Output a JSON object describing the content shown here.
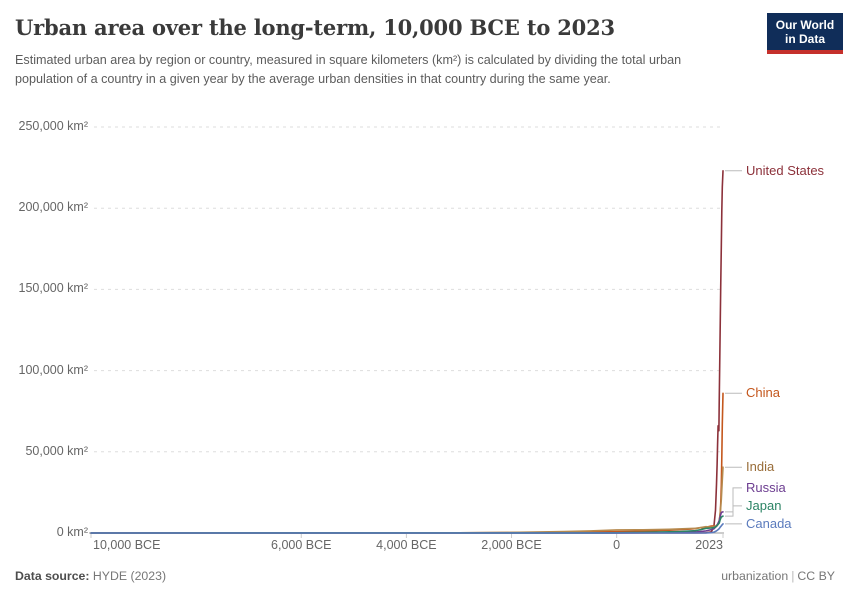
{
  "header": {
    "title": "Urban area over the long-term, 10,000 BCE to 2023",
    "subtitle": "Estimated urban area by region or country, measured in square kilometers (km²) is calculated by dividing the total urban population of a country in a given year by the average urban densities in that country during the same year."
  },
  "logo": {
    "line1": "Our World",
    "line2": "in Data",
    "bg_color": "#102d59",
    "bar_color": "#c5302b",
    "text_color": "#ffffff"
  },
  "chart_data": {
    "type": "line",
    "title": "Urban area over the long-term, 10,000 BCE to 2023",
    "xlabel": "",
    "ylabel": "",
    "x_range": [
      -10000,
      2023
    ],
    "ylim": [
      0,
      250000
    ],
    "grid": "horizontal-dashed",
    "legend_position": "right-edge-labels",
    "palette": {
      "grid_color": "#dddddd",
      "axis_color": "#999999",
      "tick_color": "#cccccc",
      "connector_color": "#bbbbbb",
      "tick_label_color": "#666666"
    },
    "yticks": [
      {
        "value": 0,
        "label": "0 km²"
      },
      {
        "value": 50000,
        "label": "50,000 km²"
      },
      {
        "value": 100000,
        "label": "100,000 km²"
      },
      {
        "value": 150000,
        "label": "150,000 km²"
      },
      {
        "value": 200000,
        "label": "200,000 km²"
      },
      {
        "value": 250000,
        "label": "250,000 km²"
      }
    ],
    "xticks": [
      {
        "value": -10000,
        "label": "10,000 BCE",
        "align": "left"
      },
      {
        "value": -6000,
        "label": "6,000 BCE",
        "align": "center"
      },
      {
        "value": -4000,
        "label": "4,000 BCE",
        "align": "center"
      },
      {
        "value": -2000,
        "label": "2,000 BCE",
        "align": "center"
      },
      {
        "value": 0,
        "label": "0",
        "align": "center"
      },
      {
        "value": 2023,
        "label": "2023",
        "align": "right"
      }
    ],
    "series": [
      {
        "name": "United States",
        "color": "#8c313a",
        "label_color": "#8c313a",
        "points": [
          [
            -10000,
            0
          ],
          [
            -5000,
            0
          ],
          [
            0,
            30
          ],
          [
            1000,
            60
          ],
          [
            1500,
            80
          ],
          [
            1700,
            150
          ],
          [
            1800,
            700
          ],
          [
            1850,
            4000
          ],
          [
            1880,
            14000
          ],
          [
            1900,
            30000
          ],
          [
            1910,
            42000
          ],
          [
            1920,
            55000
          ],
          [
            1930,
            66000
          ],
          [
            1945,
            63000
          ],
          [
            1950,
            80000
          ],
          [
            1960,
            103000
          ],
          [
            1970,
            127000
          ],
          [
            1980,
            151000
          ],
          [
            1990,
            176000
          ],
          [
            2000,
            198000
          ],
          [
            2010,
            213000
          ],
          [
            2023,
            223000
          ]
        ]
      },
      {
        "name": "China",
        "color": "#c4571d",
        "label_color": "#c4571d",
        "points": [
          [
            -10000,
            0
          ],
          [
            -5000,
            40
          ],
          [
            -3000,
            120
          ],
          [
            -2000,
            250
          ],
          [
            -1000,
            450
          ],
          [
            0,
            900
          ],
          [
            500,
            1100
          ],
          [
            1000,
            1700
          ],
          [
            1200,
            2100
          ],
          [
            1400,
            2400
          ],
          [
            1500,
            2700
          ],
          [
            1600,
            3300
          ],
          [
            1650,
            2900
          ],
          [
            1700,
            3400
          ],
          [
            1750,
            3900
          ],
          [
            1800,
            4300
          ],
          [
            1850,
            4400
          ],
          [
            1870,
            4000
          ],
          [
            1900,
            4700
          ],
          [
            1930,
            5600
          ],
          [
            1950,
            7200
          ],
          [
            1960,
            9500
          ],
          [
            1970,
            12500
          ],
          [
            1980,
            17500
          ],
          [
            1990,
            29000
          ],
          [
            2000,
            46000
          ],
          [
            2010,
            67000
          ],
          [
            2023,
            86000
          ]
        ]
      },
      {
        "name": "India",
        "color": "#b68a4e",
        "label_color": "#996d39",
        "points": [
          [
            -10000,
            0
          ],
          [
            -3000,
            150
          ],
          [
            -2000,
            350
          ],
          [
            -1000,
            900
          ],
          [
            -500,
            1300
          ],
          [
            0,
            1900
          ],
          [
            500,
            2000
          ],
          [
            1000,
            2300
          ],
          [
            1500,
            2900
          ],
          [
            1600,
            3300
          ],
          [
            1700,
            3900
          ],
          [
            1800,
            3600
          ],
          [
            1850,
            3900
          ],
          [
            1900,
            4300
          ],
          [
            1930,
            5300
          ],
          [
            1950,
            7600
          ],
          [
            1970,
            12000
          ],
          [
            1980,
            15500
          ],
          [
            1990,
            20500
          ],
          [
            2000,
            26500
          ],
          [
            2010,
            32500
          ],
          [
            2023,
            40500
          ]
        ]
      },
      {
        "name": "Russia",
        "color": "#6d3e91",
        "label_color": "#6d3e91",
        "points": [
          [
            -10000,
            0
          ],
          [
            -1000,
            30
          ],
          [
            0,
            80
          ],
          [
            1000,
            250
          ],
          [
            1500,
            600
          ],
          [
            1700,
            1300
          ],
          [
            1800,
            2100
          ],
          [
            1850,
            2600
          ],
          [
            1900,
            4100
          ],
          [
            1930,
            6100
          ],
          [
            1950,
            7600
          ],
          [
            1970,
            10200
          ],
          [
            1990,
            12600
          ],
          [
            2000,
            12800
          ],
          [
            2023,
            13000
          ]
        ]
      },
      {
        "name": "Japan",
        "color": "#2c8465",
        "label_color": "#2c8465",
        "points": [
          [
            -10000,
            0
          ],
          [
            -300,
            50
          ],
          [
            0,
            120
          ],
          [
            800,
            550
          ],
          [
            1200,
            950
          ],
          [
            1500,
            1400
          ],
          [
            1600,
            2100
          ],
          [
            1700,
            2900
          ],
          [
            1800,
            3100
          ],
          [
            1850,
            3300
          ],
          [
            1900,
            4100
          ],
          [
            1930,
            5300
          ],
          [
            1950,
            6100
          ],
          [
            1970,
            8200
          ],
          [
            1990,
            9800
          ],
          [
            2000,
            10000
          ],
          [
            2023,
            10400
          ]
        ]
      },
      {
        "name": "Canada",
        "color": "#5b7bbd",
        "label_color": "#5b7bbd",
        "points": [
          [
            -10000,
            0
          ],
          [
            1500,
            5
          ],
          [
            1700,
            30
          ],
          [
            1800,
            160
          ],
          [
            1850,
            520
          ],
          [
            1900,
            1300
          ],
          [
            1930,
            2100
          ],
          [
            1950,
            2700
          ],
          [
            1970,
            3600
          ],
          [
            1990,
            4400
          ],
          [
            2000,
            4800
          ],
          [
            2023,
            5600
          ]
        ]
      }
    ]
  },
  "footer": {
    "source_label": "Data source:",
    "source_value": "HYDE (2023)",
    "right_primary": "urbanization",
    "right_separator": "|",
    "right_secondary": "CC BY"
  }
}
